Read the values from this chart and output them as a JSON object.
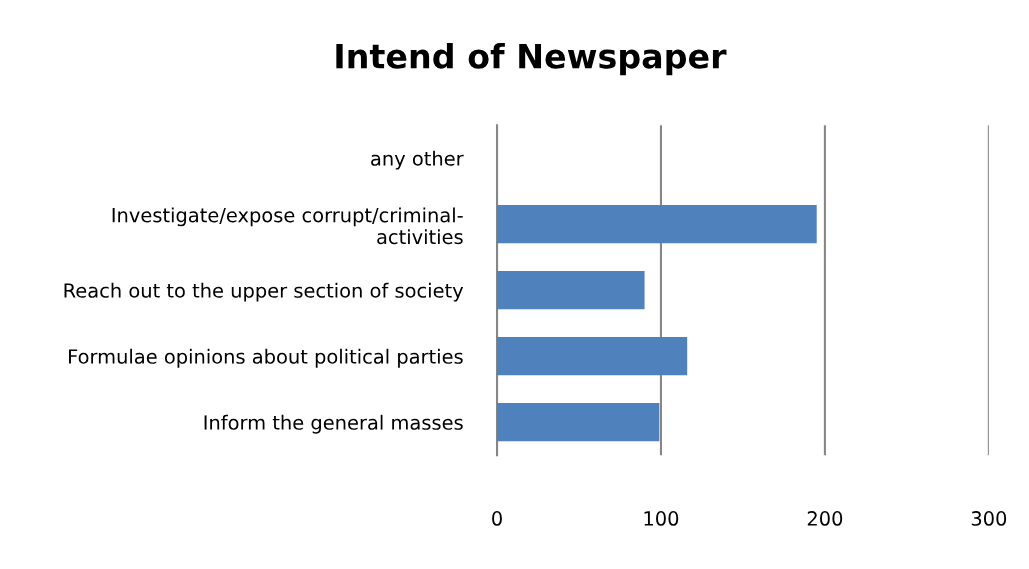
{
  "chart_data": {
    "type": "bar",
    "orientation": "horizontal",
    "title": "Intend of Newspaper",
    "categories": [
      "any other",
      "Investigate/expose corrupt/criminal-\nactivities",
      "Reach out to the upper section of society",
      "Formulae opinions about political parties",
      "Inform the general masses"
    ],
    "values": [
      0,
      195,
      90,
      116,
      99
    ],
    "color": "#4f81bd",
    "xlim": [
      0,
      300
    ],
    "xticks": [
      0,
      100,
      200,
      300
    ],
    "grid": "x"
  }
}
